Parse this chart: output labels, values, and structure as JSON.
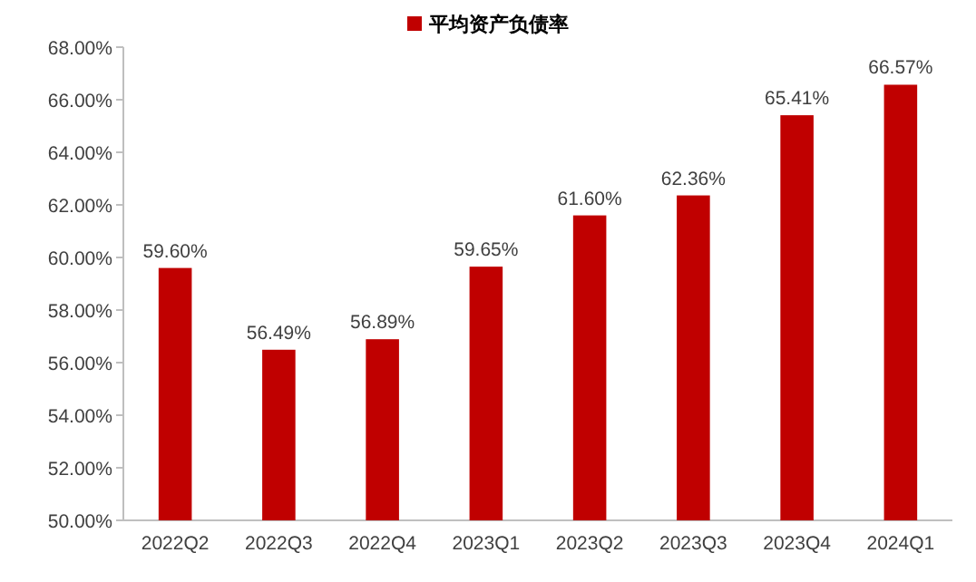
{
  "chart_data": {
    "type": "bar",
    "categories": [
      "2022Q2",
      "2022Q3",
      "2022Q4",
      "2023Q1",
      "2023Q2",
      "2023Q3",
      "2023Q4",
      "2024Q1"
    ],
    "series": [
      {
        "name": "平均资产负债率",
        "color": "#c00000",
        "values": [
          59.6,
          56.49,
          56.89,
          59.65,
          61.6,
          62.36,
          65.41,
          66.57
        ],
        "value_labels": [
          "59.60%",
          "56.49%",
          "56.89%",
          "59.65%",
          "61.60%",
          "62.36%",
          "65.41%",
          "66.57%"
        ]
      }
    ],
    "ylim": [
      50,
      68
    ],
    "yticks": [
      {
        "value": 50,
        "label": "50.00%"
      },
      {
        "value": 52,
        "label": "52.00%"
      },
      {
        "value": 54,
        "label": "54.00%"
      },
      {
        "value": 56,
        "label": "56.00%"
      },
      {
        "value": 58,
        "label": "58.00%"
      },
      {
        "value": 60,
        "label": "60.00%"
      },
      {
        "value": 62,
        "label": "62.00%"
      },
      {
        "value": 64,
        "label": "64.00%"
      },
      {
        "value": 66,
        "label": "66.00%"
      },
      {
        "value": 68,
        "label": "68.00%"
      }
    ],
    "legend": "top",
    "grid": false
  }
}
